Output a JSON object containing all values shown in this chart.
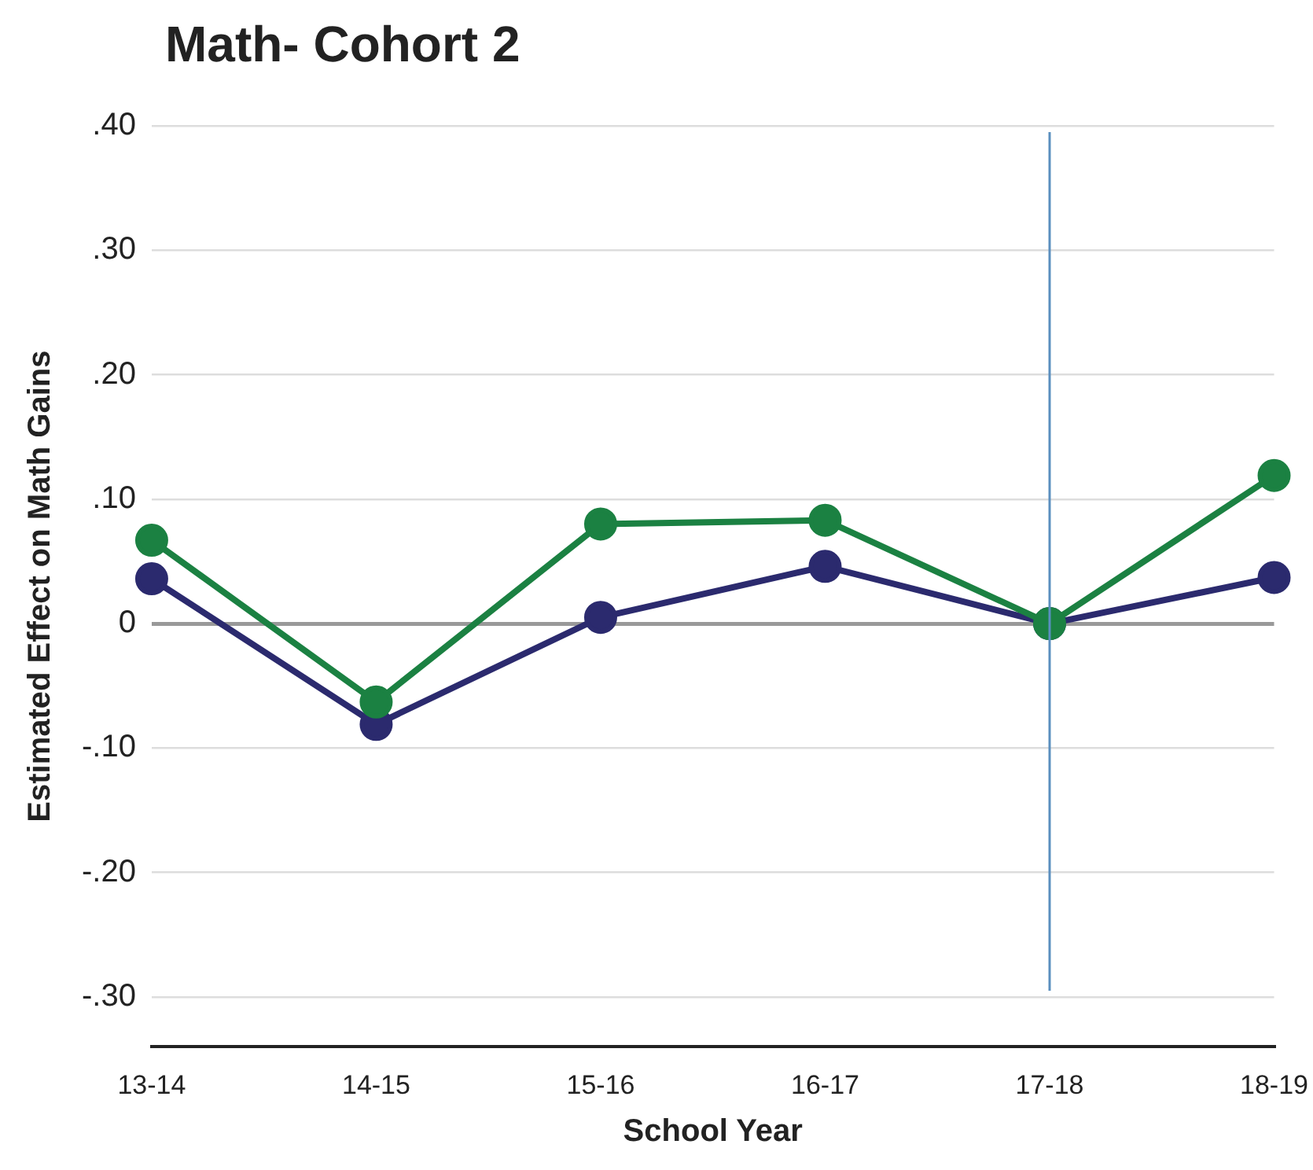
{
  "chart_data": {
    "type": "line",
    "title": "Math- Cohort 2",
    "xlabel": "School Year",
    "ylabel": "Estimated Effect on Math Gains",
    "categories": [
      "13-14",
      "14-15",
      "15-16",
      "16-17",
      "17-18",
      "18-19"
    ],
    "series": [
      {
        "color": "#1b8142",
        "values": [
          0.067,
          -0.063,
          0.08,
          0.083,
          0.0,
          0.119
        ]
      },
      {
        "color": "#2b2a6e",
        "values": [
          0.036,
          -0.081,
          0.005,
          0.046,
          0.0,
          0.037
        ]
      }
    ],
    "ylim": [
      -0.34,
      0.4
    ],
    "yticks": [
      {
        "value": 0.4,
        "label": ".40"
      },
      {
        "value": 0.3,
        "label": ".30"
      },
      {
        "value": 0.2,
        "label": ".20"
      },
      {
        "value": 0.1,
        "label": ".10"
      },
      {
        "value": 0,
        "label": "0"
      },
      {
        "value": -0.1,
        "label": "-.10"
      },
      {
        "value": -0.2,
        "label": "-.20"
      },
      {
        "value": -0.3,
        "label": "-.30"
      }
    ],
    "ref_lines": [
      {
        "axis": "x",
        "value": "17-18",
        "color": "#5b8fbf"
      }
    ],
    "grid": "y",
    "legend": false,
    "marker": "circle",
    "line_style": "solid"
  }
}
